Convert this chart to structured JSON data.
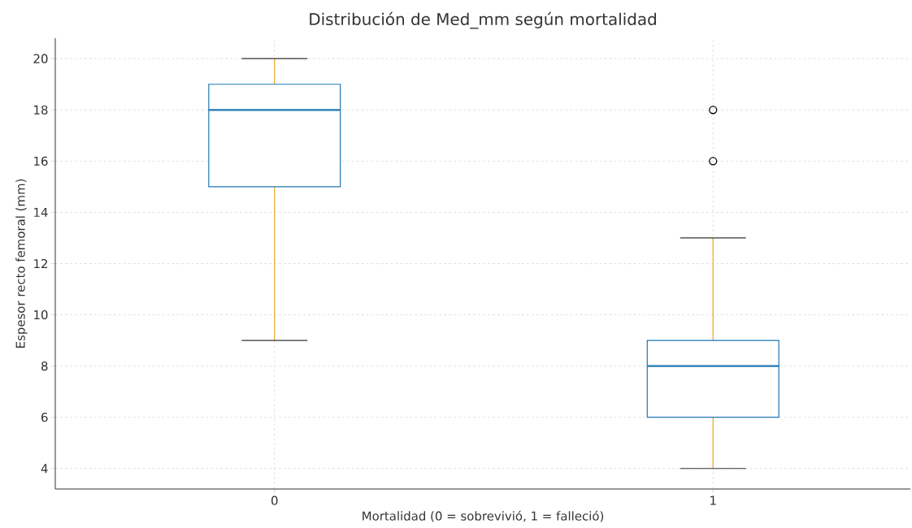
{
  "chart_data": {
    "type": "box",
    "title": "Distribución de Med_mm según mortalidad",
    "xlabel": "Mortalidad (0 = sobrevivió, 1 = falleció)",
    "ylabel": "Espesor recto femoral (mm)",
    "categories": [
      "0",
      "1"
    ],
    "series": [
      {
        "color": "#1f77b4",
        "boxes": [
          {
            "low": 9,
            "q1": 15,
            "median": 18,
            "q3": 19,
            "high": 20
          },
          {
            "low": 4,
            "q1": 6,
            "median": 8,
            "q3": 9,
            "high": 13,
            "outliers": [
              16,
              18
            ]
          }
        ]
      }
    ],
    "ylim": [
      3.2,
      20.8
    ],
    "yticks": [
      4,
      6,
      8,
      10,
      12,
      14,
      16,
      18,
      20
    ],
    "grid": true
  }
}
